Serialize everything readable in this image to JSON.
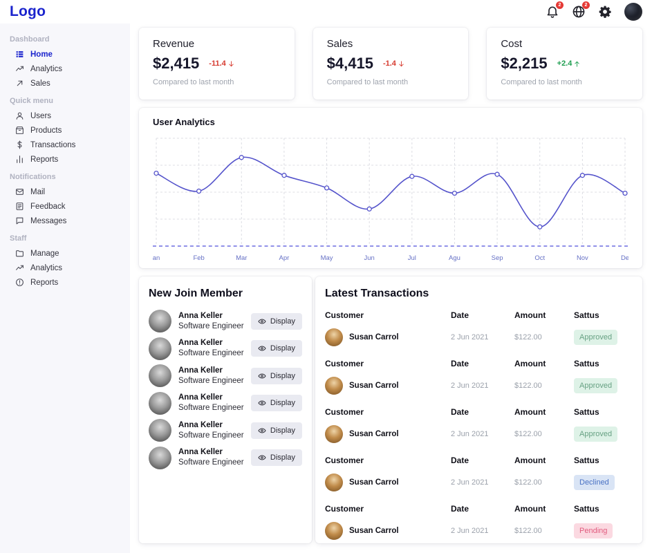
{
  "theme": {
    "accent": "#1b24cd",
    "negative": "#d63a2f",
    "positive": "#1e9e50",
    "badge_red": "#e53935"
  },
  "topbar": {
    "logo": "Logo",
    "bell_badge": "2",
    "globe_badge": "2"
  },
  "sidebar": {
    "sections": [
      {
        "title": "Dashboard",
        "items": [
          {
            "icon": "grid-icon",
            "label": "Home",
            "active": true
          },
          {
            "icon": "trend-icon",
            "label": "Analytics",
            "active": false
          },
          {
            "icon": "arrow-icon",
            "label": "Sales",
            "active": false
          }
        ]
      },
      {
        "title": "Quick menu",
        "items": [
          {
            "icon": "user-icon",
            "label": "Users",
            "active": false
          },
          {
            "icon": "box-icon",
            "label": "Products",
            "active": false
          },
          {
            "icon": "dollar-icon",
            "label": "Transactions",
            "active": false
          },
          {
            "icon": "bars-icon",
            "label": "Reports",
            "active": false
          }
        ]
      },
      {
        "title": "Notifications",
        "items": [
          {
            "icon": "mail-icon",
            "label": "Mail",
            "active": false
          },
          {
            "icon": "feedback-icon",
            "label": "Feedback",
            "active": false
          },
          {
            "icon": "message-icon",
            "label": "Messages",
            "active": false
          }
        ]
      },
      {
        "title": "Staff",
        "items": [
          {
            "icon": "folder-icon",
            "label": "Manage",
            "active": false
          },
          {
            "icon": "trend-icon",
            "label": "Analytics",
            "active": false
          },
          {
            "icon": "alert-icon",
            "label": "Reports",
            "active": false
          }
        ]
      }
    ]
  },
  "stats": [
    {
      "title": "Revenue",
      "value": "$2,415",
      "delta": "-11.4",
      "direction": "down",
      "note": "Compared to last month"
    },
    {
      "title": "Sales",
      "value": "$4,415",
      "delta": "-1.4",
      "direction": "down",
      "note": "Compared to last month"
    },
    {
      "title": "Cost",
      "value": "$2,215",
      "delta": "+2.4",
      "direction": "up",
      "note": "Compared to last month"
    }
  ],
  "chart_data": {
    "type": "line",
    "title": "User Analytics",
    "x": [
      "an",
      "Feb",
      "Mar",
      "Apr",
      "May",
      "Jun",
      "Jul",
      "Agu",
      "Sep",
      "Oct",
      "Nov",
      "De"
    ],
    "values": [
      68,
      51,
      83,
      66,
      54,
      34,
      65,
      49,
      67,
      17,
      66,
      49
    ],
    "xlabel": "",
    "ylabel": "",
    "ylim": [
      0,
      100
    ],
    "grid": true,
    "legend": false,
    "line_color": "#5453cb",
    "axis_color": "#4d4ddb"
  },
  "members": {
    "title": "New Join Member",
    "button_label": "Display",
    "rows": [
      {
        "name": "Anna Keller",
        "role": "Software Engineer"
      },
      {
        "name": "Anna Keller",
        "role": "Software Engineer"
      },
      {
        "name": "Anna Keller",
        "role": "Software Engineer"
      },
      {
        "name": "Anna Keller",
        "role": "Software Engineer"
      },
      {
        "name": "Anna Keller",
        "role": "Software Engineer"
      },
      {
        "name": "Anna Keller",
        "role": "Software Engineer"
      }
    ]
  },
  "transactions": {
    "title": "Latest Transactions",
    "headers": [
      "Customer",
      "Date",
      "Amount",
      "Sattus"
    ],
    "rows": [
      {
        "customer": "Susan Carrol",
        "date": "2 Jun 2021",
        "amount": "$122.00",
        "status": "Approved",
        "status_bg": "#def2e7",
        "status_color": "#67a183"
      },
      {
        "customer": "Susan Carrol",
        "date": "2 Jun 2021",
        "amount": "$122.00",
        "status": "Approved",
        "status_bg": "#def2e7",
        "status_color": "#67a183"
      },
      {
        "customer": "Susan Carrol",
        "date": "2 Jun 2021",
        "amount": "$122.00",
        "status": "Approved",
        "status_bg": "#def2e7",
        "status_color": "#67a183"
      },
      {
        "customer": "Susan Carrol",
        "date": "2 Jun 2021",
        "amount": "$122.00",
        "status": "Declined",
        "status_bg": "#d9e4f5",
        "status_color": "#4a72c4"
      },
      {
        "customer": "Susan Carrol",
        "date": "2 Jun 2021",
        "amount": "$122.00",
        "status": "Pending",
        "status_bg": "#fbd9e1",
        "status_color": "#e15b7e"
      }
    ]
  }
}
